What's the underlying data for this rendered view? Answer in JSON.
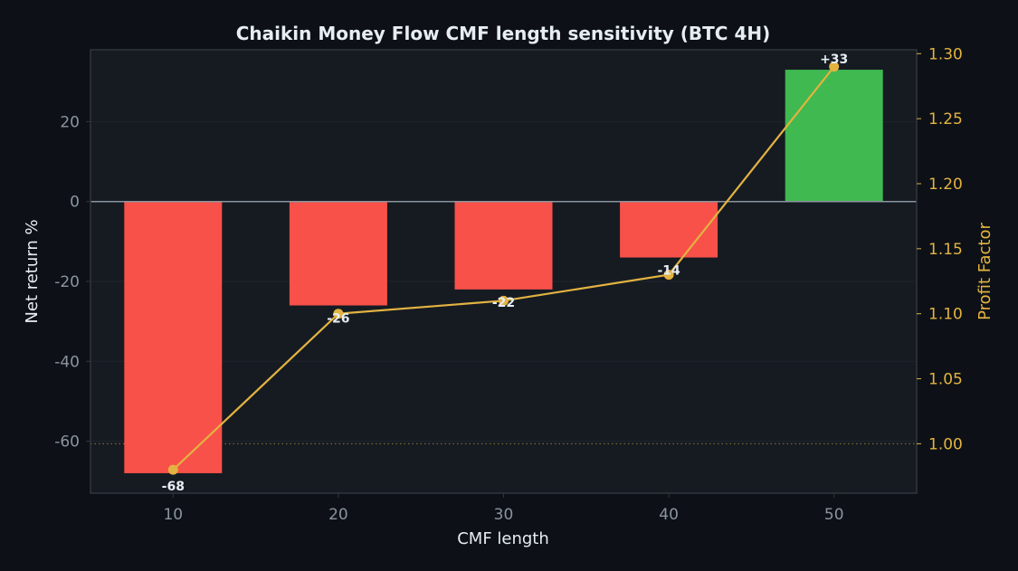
{
  "chart_data": {
    "type": "bar",
    "title": "Chaikin Money Flow CMF length sensitivity (BTC 4H)",
    "xlabel": "CMF length",
    "ylabel": "Net return %",
    "y2label": "Profit Factor",
    "categories": [
      "10",
      "20",
      "30",
      "40",
      "50"
    ],
    "series": [
      {
        "type": "bar",
        "axis": "left",
        "values": [
          -68,
          -26,
          -22,
          -14,
          33
        ],
        "value_labels": [
          "-68",
          "-26",
          "-22",
          "-14",
          "+33"
        ]
      },
      {
        "type": "line",
        "axis": "right",
        "values": [
          0.98,
          1.1,
          1.11,
          1.13,
          1.29
        ]
      }
    ],
    "ylim": [
      -73,
      38
    ],
    "y2lim": [
      0.962,
      1.303
    ],
    "yticks": [
      -60,
      -40,
      -20,
      0,
      20
    ],
    "y2ticks": [
      1.0,
      1.05,
      1.1,
      1.15,
      1.2,
      1.25,
      1.3
    ],
    "y2tick_labels": [
      "1.00",
      "1.05",
      "1.10",
      "1.15",
      "1.20",
      "1.25",
      "1.30"
    ],
    "reference_line": {
      "axis": "right",
      "value": 1.0,
      "style": "dotted"
    },
    "grid": true,
    "colors": {
      "background": "#0d1117",
      "plot_background": "#161b22",
      "positive_bar": "#3fb950",
      "negative_bar": "#f85149",
      "line": "#e3b341",
      "right_axis": "#e3b341",
      "text": "#e6edf3",
      "tick_text": "#8b949e",
      "zero_line": "#8b949e",
      "frame": "#30363d"
    }
  }
}
